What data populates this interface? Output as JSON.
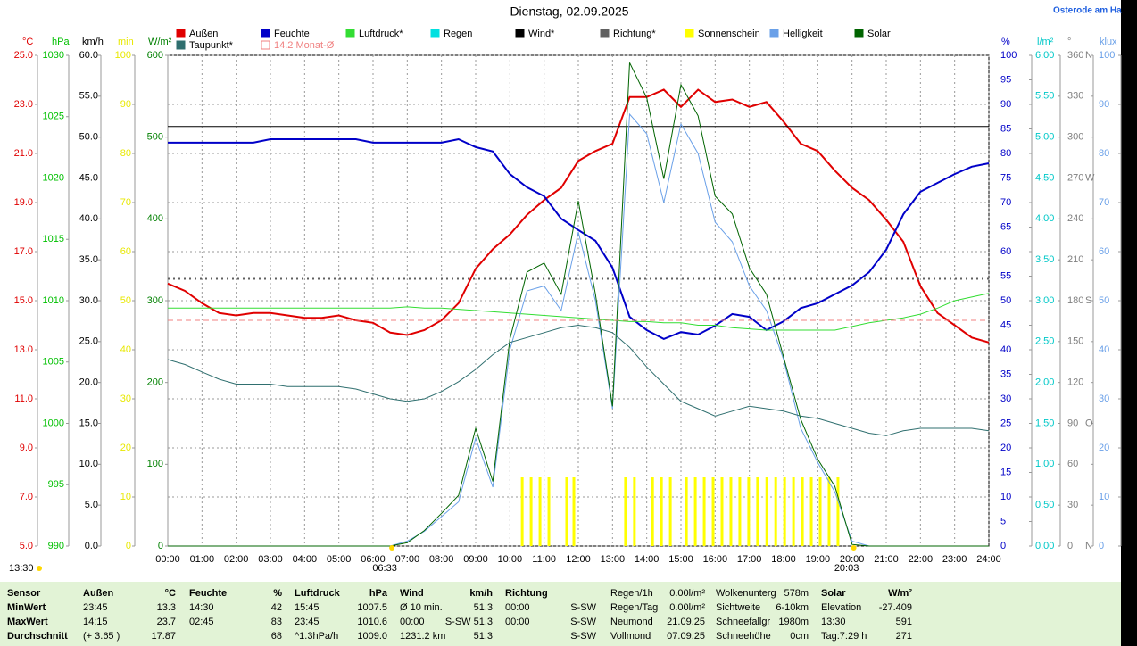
{
  "chart_data": {
    "type": "line",
    "title": "Dienstag, 02.09.2025",
    "station": "Osterode am Ha",
    "xlim": [
      0,
      24
    ],
    "xticks": [
      {
        "value": 0,
        "label": "00:00"
      },
      {
        "value": 1,
        "label": "01:00"
      },
      {
        "value": 2,
        "label": "02:00"
      },
      {
        "value": 3,
        "label": "03:00"
      },
      {
        "value": 4,
        "label": "04:00"
      },
      {
        "value": 5,
        "label": "05:00"
      },
      {
        "value": 6,
        "label": "06:00"
      },
      {
        "value": 7,
        "label": "07:00"
      },
      {
        "value": 8,
        "label": "08:00"
      },
      {
        "value": 9,
        "label": "09:00"
      },
      {
        "value": 10,
        "label": "10:00"
      },
      {
        "value": 11,
        "label": "11:00"
      },
      {
        "value": 12,
        "label": "12:00"
      },
      {
        "value": 13,
        "label": "13:00"
      },
      {
        "value": 14,
        "label": "14:00"
      },
      {
        "value": 15,
        "label": "15:00"
      },
      {
        "value": 16,
        "label": "16:00"
      },
      {
        "value": 17,
        "label": "17:00"
      },
      {
        "value": 18,
        "label": "18:00"
      },
      {
        "value": 19,
        "label": "19:00"
      },
      {
        "value": 20,
        "label": "20:00"
      },
      {
        "value": 21,
        "label": "21:00"
      },
      {
        "value": 22,
        "label": "22:00"
      },
      {
        "value": 23,
        "label": "23:00"
      },
      {
        "value": 24,
        "label": "24:00"
      }
    ],
    "grid": true,
    "axes": [
      {
        "unit": "°C",
        "color": "#e00000",
        "lim": [
          5,
          25
        ],
        "ticks": [
          {
            "value": 5,
            "label": "5.0"
          },
          {
            "value": 7,
            "label": "7.0"
          },
          {
            "value": 9,
            "label": "9.0"
          },
          {
            "value": 11,
            "label": "11.0"
          },
          {
            "value": 13,
            "label": "13.0"
          },
          {
            "value": 15,
            "label": "15.0"
          },
          {
            "value": 17,
            "label": "17.0"
          },
          {
            "value": 19,
            "label": "19.0"
          },
          {
            "value": 21,
            "label": "21.0"
          },
          {
            "value": 23,
            "label": "23.0"
          },
          {
            "value": 25,
            "label": "25.0"
          }
        ]
      },
      {
        "unit": "hPa",
        "color": "#00c000",
        "lim": [
          990,
          1030
        ],
        "ticks": [
          990,
          995,
          1000,
          1005,
          1010,
          1015,
          1020,
          1025,
          1030
        ]
      },
      {
        "unit": "km/h",
        "color": "#000000",
        "lim": [
          0,
          60
        ],
        "ticks": [
          {
            "value": 0,
            "label": "0.0"
          },
          {
            "value": 5,
            "label": "5.0"
          },
          {
            "value": 10,
            "label": "10.0"
          },
          {
            "value": 15,
            "label": "15.0"
          },
          {
            "value": 20,
            "label": "20.0"
          },
          {
            "value": 25,
            "label": "25.0"
          },
          {
            "value": 30,
            "label": "30.0"
          },
          {
            "value": 35,
            "label": "35.0"
          },
          {
            "value": 40,
            "label": "40.0"
          },
          {
            "value": 45,
            "label": "45.0"
          },
          {
            "value": 50,
            "label": "50.0"
          },
          {
            "value": 55,
            "label": "55.0"
          },
          {
            "value": 60,
            "label": "60.0"
          }
        ]
      },
      {
        "unit": "min",
        "color": "#e8e800",
        "lim": [
          0,
          100
        ],
        "ticks": [
          0,
          10,
          20,
          30,
          40,
          50,
          60,
          70,
          80,
          90,
          100
        ]
      },
      {
        "unit": "W/m²",
        "color": "#008000",
        "lim": [
          0,
          600
        ],
        "ticks": [
          0,
          100,
          200,
          300,
          400,
          500,
          600
        ]
      },
      {
        "unit": "%",
        "color": "#0000c8",
        "lim": [
          0,
          100
        ],
        "ticks": [
          0,
          5,
          10,
          15,
          20,
          25,
          30,
          35,
          40,
          45,
          50,
          55,
          60,
          65,
          70,
          75,
          80,
          85,
          90,
          95,
          100
        ]
      },
      {
        "unit": "l/m²",
        "color": "#00c8c8",
        "lim": [
          0,
          6
        ],
        "ticks": [
          {
            "value": 0,
            "label": "0.00"
          },
          {
            "value": 0.5,
            "label": "0.50"
          },
          {
            "value": 1,
            "label": "1.00"
          },
          {
            "value": 1.5,
            "label": "1.50"
          },
          {
            "value": 2,
            "label": "2.00"
          },
          {
            "value": 2.5,
            "label": "2.50"
          },
          {
            "value": 3,
            "label": "3.00"
          },
          {
            "value": 3.5,
            "label": "3.50"
          },
          {
            "value": 4,
            "label": "4.00"
          },
          {
            "value": 4.5,
            "label": "4.50"
          },
          {
            "value": 5,
            "label": "5.00"
          },
          {
            "value": 5.5,
            "label": "5.50"
          },
          {
            "value": 6,
            "label": "6.00"
          }
        ]
      },
      {
        "unit": "°",
        "color": "#808080",
        "lim": [
          0,
          360
        ],
        "ticks": [
          0,
          30,
          60,
          90,
          120,
          150,
          180,
          210,
          240,
          270,
          300,
          330,
          360
        ],
        "compass": [
          {
            "value": 0,
            "label": "N"
          },
          {
            "value": 90,
            "label": "O"
          },
          {
            "value": 180,
            "label": "S"
          },
          {
            "value": 270,
            "label": "W"
          },
          {
            "value": 360,
            "label": "N"
          }
        ]
      },
      {
        "unit": "klux",
        "color": "#6aa0e8",
        "lim": [
          0,
          100
        ],
        "ticks": [
          0,
          10,
          20,
          30,
          40,
          50,
          60,
          70,
          80,
          90,
          100
        ]
      }
    ],
    "x": [
      0,
      0.5,
      1,
      1.5,
      2,
      2.5,
      3,
      3.5,
      4,
      4.5,
      5,
      5.5,
      6,
      6.5,
      7,
      7.5,
      8,
      8.5,
      9,
      9.5,
      10,
      10.5,
      11,
      11.5,
      12,
      12.5,
      13,
      13.5,
      14,
      14.5,
      15,
      15.5,
      16,
      16.5,
      17,
      17.5,
      18,
      18.5,
      19,
      19.5,
      20,
      20.5,
      21,
      21.5,
      22,
      22.5,
      23,
      23.5,
      24
    ],
    "series": [
      {
        "name": "Außen",
        "color": "#e00000",
        "axis": 0,
        "style": "line",
        "width": 2,
        "values": [
          15.7,
          15.4,
          14.9,
          14.5,
          14.4,
          14.5,
          14.5,
          14.4,
          14.3,
          14.3,
          14.4,
          14.2,
          14.1,
          13.7,
          13.6,
          13.8,
          14.2,
          14.9,
          16.3,
          17.1,
          17.7,
          18.5,
          19.1,
          19.6,
          20.7,
          21.1,
          21.4,
          23.3,
          23.3,
          23.6,
          22.9,
          23.6,
          23.1,
          23.2,
          22.9,
          23.1,
          22.3,
          21.4,
          21.1,
          20.3,
          19.6,
          19.1,
          18.3,
          17.4,
          15.6,
          14.5,
          14.0,
          13.5,
          13.3
        ]
      },
      {
        "name": "Feuchte",
        "color": "#0000c8",
        "axis": 5,
        "style": "line",
        "width": 2,
        "values": [
          82.2,
          82.2,
          82.2,
          82.2,
          82.2,
          82.2,
          82.9,
          82.9,
          82.9,
          82.9,
          82.9,
          82.9,
          82.2,
          82.2,
          82.2,
          82.2,
          82.2,
          82.9,
          81.3,
          80.4,
          75.8,
          73.1,
          71.3,
          66.7,
          64.4,
          62.2,
          56.7,
          46.7,
          44.0,
          42.2,
          43.6,
          43.1,
          44.9,
          47.3,
          46.7,
          44.0,
          45.8,
          48.5,
          49.5,
          51.3,
          53.1,
          55.8,
          60.4,
          67.6,
          72.2,
          74.0,
          75.8,
          77.3,
          78.0
        ]
      },
      {
        "name": "Luftdruck*",
        "color": "#33dd33",
        "axis": 1,
        "style": "line",
        "width": 1,
        "values": [
          1009.4,
          1009.4,
          1009.4,
          1009.4,
          1009.4,
          1009.4,
          1009.4,
          1009.4,
          1009.4,
          1009.4,
          1009.4,
          1009.4,
          1009.4,
          1009.4,
          1009.5,
          1009.4,
          1009.4,
          1009.3,
          1009.2,
          1009.1,
          1009.0,
          1008.9,
          1008.8,
          1008.7,
          1008.6,
          1008.5,
          1008.4,
          1008.3,
          1008.3,
          1008.2,
          1008.2,
          1008.0,
          1008.0,
          1007.8,
          1007.7,
          1007.6,
          1007.6,
          1007.6,
          1007.6,
          1007.6,
          1007.9,
          1008.2,
          1008.4,
          1008.6,
          1008.9,
          1009.4,
          1010.0,
          1010.3,
          1010.6
        ]
      },
      {
        "name": "Regen",
        "color": "#00e0e0",
        "axis": 6,
        "style": "none"
      },
      {
        "name": "Wind*",
        "color": "#000000",
        "axis": 2,
        "style": "hline",
        "value": 51.3
      },
      {
        "name": "Richtung*",
        "color": "#606060",
        "axis": 7,
        "style": "dotted",
        "value": 196
      },
      {
        "name": "Sonnenschein",
        "color": "#ffff00",
        "axis": 3,
        "style": "bars",
        "x": [
          10.36,
          10.62,
          10.88,
          11.14,
          11.66,
          11.87,
          13.38,
          13.64,
          14.17,
          14.43,
          14.69,
          15.16,
          15.42,
          15.68,
          15.94,
          16.2,
          16.46,
          16.72,
          16.98,
          17.24,
          17.51,
          17.77,
          18.03,
          18.29,
          18.55,
          18.81,
          19.07,
          19.33,
          19.59
        ],
        "values": [
          14,
          14,
          14,
          14,
          14,
          14,
          14,
          14,
          14,
          14,
          14,
          14,
          14,
          14,
          14,
          14,
          14,
          14,
          14,
          14,
          14,
          14,
          14,
          14,
          14,
          14,
          14,
          14,
          14
        ]
      },
      {
        "name": "Helligkeit",
        "color": "#6aa0e8",
        "axis": 8,
        "style": "line",
        "width": 1,
        "values": [
          0,
          0,
          0,
          0,
          0,
          0,
          0,
          0,
          0,
          0,
          0,
          0,
          0,
          0,
          1,
          3,
          6,
          9,
          22,
          12,
          40,
          52,
          53,
          48,
          64,
          50,
          28,
          88,
          84,
          70,
          86,
          80,
          66,
          62,
          53,
          48,
          38,
          24,
          17,
          11,
          1,
          0,
          0,
          0,
          0,
          0,
          0,
          0,
          0
        ]
      },
      {
        "name": "Solar",
        "color": "#006400",
        "axis": 4,
        "style": "line",
        "width": 1,
        "values": [
          0,
          0,
          0,
          0,
          0,
          0,
          0,
          0,
          0,
          0,
          0,
          0,
          0,
          0,
          4,
          19,
          40,
          62,
          144,
          79,
          253,
          335,
          346,
          308,
          422,
          308,
          171,
          591,
          548,
          449,
          564,
          526,
          428,
          406,
          340,
          308,
          231,
          155,
          106,
          73,
          2,
          0,
          0,
          0,
          0,
          0,
          0,
          0,
          0
        ]
      },
      {
        "name": "Taupunkt*",
        "color": "#2f6f6f",
        "axis": 0,
        "style": "line",
        "width": 1,
        "values": [
          12.6,
          12.4,
          12.1,
          11.8,
          11.6,
          11.6,
          11.6,
          11.5,
          11.5,
          11.5,
          11.5,
          11.4,
          11.2,
          11.0,
          10.9,
          11.0,
          11.3,
          11.7,
          12.2,
          12.8,
          13.3,
          13.5,
          13.7,
          13.9,
          14.0,
          13.9,
          13.7,
          13.1,
          12.3,
          11.6,
          10.9,
          10.6,
          10.3,
          10.5,
          10.7,
          10.6,
          10.5,
          10.3,
          10.2,
          10.0,
          9.8,
          9.6,
          9.5,
          9.7,
          9.8,
          9.8,
          9.8,
          9.8,
          9.7
        ]
      },
      {
        "name": "14.2 Monat-Ø",
        "color": "#f08080",
        "axis": 0,
        "style": "dashed",
        "value": 14.2
      }
    ],
    "sunrise": {
      "label": "06:33",
      "x": 6.55
    },
    "sunset": {
      "label": "20:03",
      "x": 20.05
    },
    "solar_max_time": "13:30"
  },
  "table": {
    "rows": [
      [
        "Sensor",
        "Außen",
        "°C",
        "Feuchte",
        "%",
        "Luftdruck",
        "hPa",
        "Wind",
        "km/h",
        "Richtung",
        null,
        "Regen/1h",
        "0.00l/m²",
        "Wolkenunterg",
        "578m",
        "Solar",
        "W/m²"
      ],
      [
        "MinWert",
        "23:45",
        "13.3",
        "14:30",
        "42",
        "15:45",
        "1007.5",
        "Ø 10 min.",
        "51.3",
        "00:00",
        "S-SW",
        "Regen/Tag",
        "0.00l/m²",
        "Sichtweite",
        "6-10km",
        "Elevation",
        "-27.409"
      ],
      [
        "MaxWert",
        "14:15",
        "23.7",
        "02:45",
        "83",
        "23:45",
        "1010.6",
        "00:00",
        "S-SW 51.3",
        "00:00",
        "S-SW",
        "Neumond",
        "21.09.25",
        "Schneefallgr",
        "1980m",
        "13:30",
        "591"
      ],
      [
        "Durchschnitt",
        "(+ 3.65 )",
        "17.87",
        null,
        "68",
        "^1.3hPa/h",
        "1009.0",
        "1231.2 km",
        "51.3",
        null,
        "S-SW",
        "Vollmond",
        "07.09.25",
        "Schneehöhe",
        "0cm",
        "Tag:7:29 h",
        "271"
      ]
    ]
  }
}
